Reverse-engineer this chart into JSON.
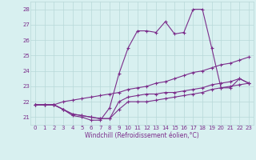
{
  "x": [
    0,
    1,
    2,
    3,
    4,
    5,
    6,
    7,
    8,
    9,
    10,
    11,
    12,
    13,
    14,
    15,
    16,
    17,
    18,
    19,
    20,
    21,
    22,
    23
  ],
  "line1": [
    21.8,
    21.8,
    21.8,
    21.5,
    21.1,
    21.0,
    20.8,
    20.8,
    21.6,
    23.8,
    25.5,
    26.6,
    26.6,
    26.5,
    27.2,
    26.4,
    26.5,
    28.0,
    28.0,
    25.5,
    22.9,
    22.9,
    23.5,
    23.2
  ],
  "line2": [
    21.8,
    21.8,
    21.8,
    21.5,
    21.2,
    21.1,
    21.0,
    20.9,
    20.9,
    21.5,
    22.0,
    22.0,
    22.0,
    22.1,
    22.2,
    22.3,
    22.4,
    22.5,
    22.6,
    22.8,
    22.9,
    23.0,
    23.1,
    23.2
  ],
  "line3": [
    21.8,
    21.8,
    21.8,
    21.5,
    21.2,
    21.1,
    21.0,
    20.9,
    20.9,
    22.0,
    22.3,
    22.4,
    22.5,
    22.5,
    22.6,
    22.6,
    22.7,
    22.8,
    22.9,
    23.1,
    23.2,
    23.3,
    23.5,
    23.2
  ],
  "line4": [
    21.8,
    21.8,
    21.8,
    22.0,
    22.1,
    22.2,
    22.3,
    22.4,
    22.5,
    22.6,
    22.8,
    22.9,
    23.0,
    23.2,
    23.3,
    23.5,
    23.7,
    23.9,
    24.0,
    24.2,
    24.4,
    24.5,
    24.7,
    24.9
  ],
  "line_color": "#7b2d8b",
  "bg_color": "#d8f0f0",
  "grid_color": "#b8d8d8",
  "xlabel": "Windchill (Refroidissement éolien,°C)",
  "ylim": [
    20.5,
    28.5
  ],
  "xlim": [
    -0.5,
    23.5
  ],
  "yticks": [
    21,
    22,
    23,
    24,
    25,
    26,
    27,
    28
  ],
  "xticks": [
    0,
    1,
    2,
    3,
    4,
    5,
    6,
    7,
    8,
    9,
    10,
    11,
    12,
    13,
    14,
    15,
    16,
    17,
    18,
    19,
    20,
    21,
    22,
    23
  ],
  "tick_fontsize": 5,
  "xlabel_fontsize": 5.5
}
